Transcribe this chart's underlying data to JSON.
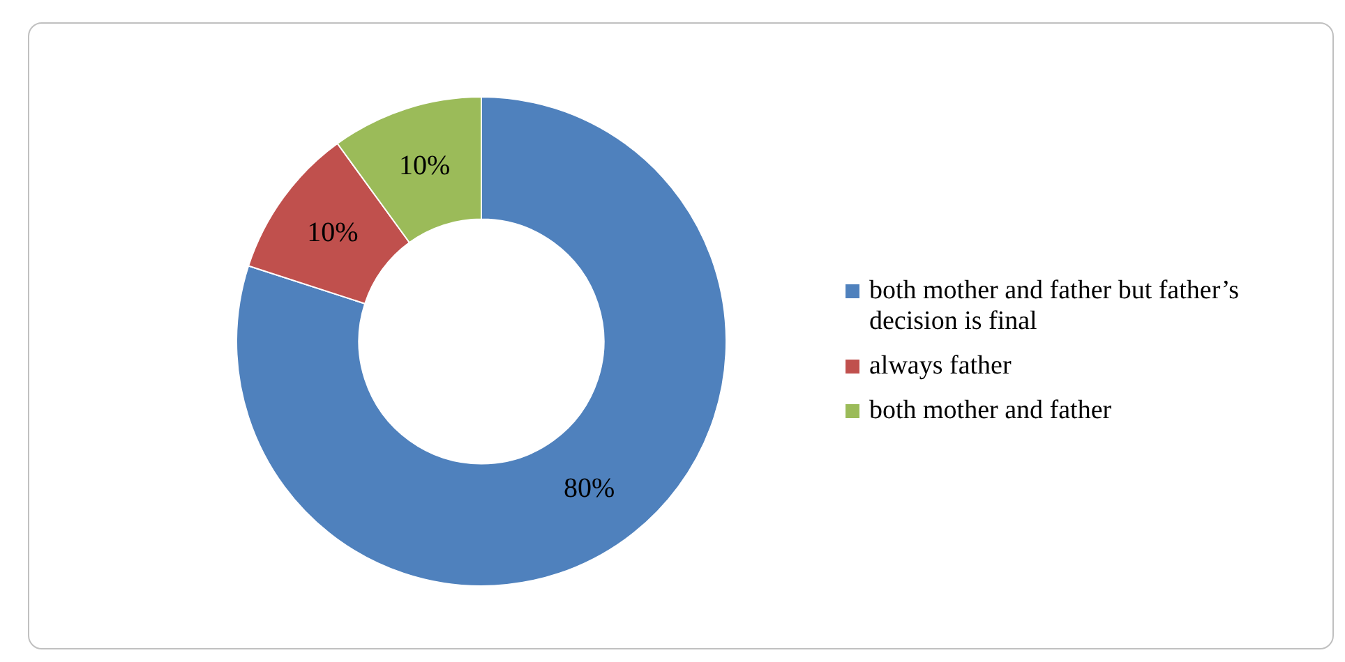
{
  "chart_data": {
    "type": "donut",
    "categories": [
      "both mother and father but father’s decision is final",
      "always father",
      "both mother and father"
    ],
    "values": [
      80,
      10,
      10
    ],
    "colors": [
      "#4f81bd",
      "#c0504d",
      "#9bbb59"
    ],
    "value_labels": [
      "80%",
      "10%",
      "10%"
    ],
    "legend": "right"
  }
}
